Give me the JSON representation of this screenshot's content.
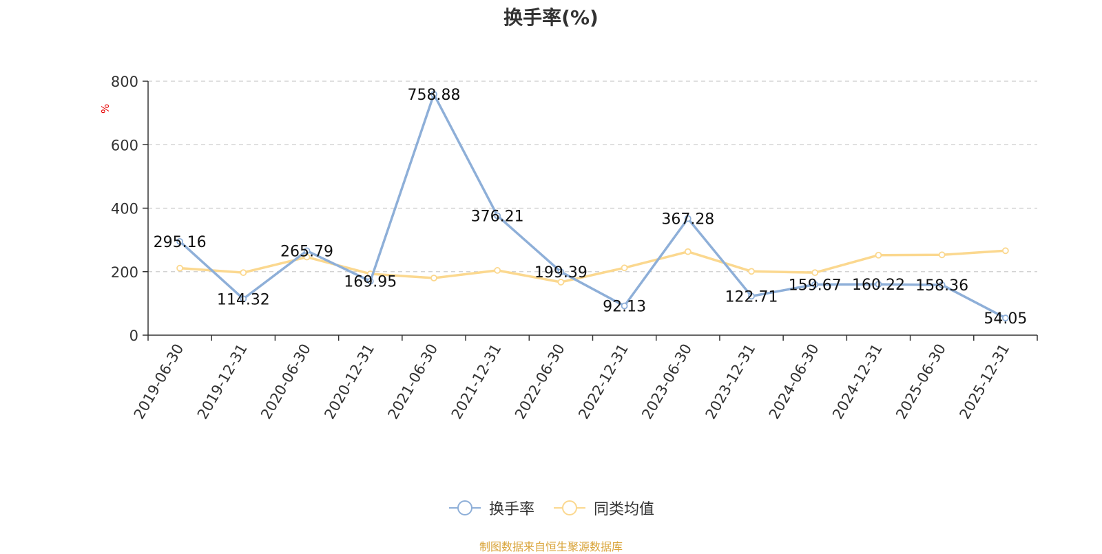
{
  "chart_data": {
    "type": "line",
    "title": "换手率(%)",
    "ylabel": "%",
    "ylim": [
      0,
      800
    ],
    "yticks": [
      0,
      200,
      400,
      600,
      800
    ],
    "grid": true,
    "legend_placement": "bottom",
    "categories": [
      "2019-06-30",
      "2019-12-31",
      "2020-06-30",
      "2020-12-31",
      "2021-06-30",
      "2021-12-31",
      "2022-06-30",
      "2022-12-31",
      "2023-06-30",
      "2023-12-31",
      "2024-06-30",
      "2024-12-31",
      "2025-06-30",
      "2025-12-31"
    ],
    "series": [
      {
        "name": "换手率",
        "color": "#8eafd8",
        "values": [
          295.16,
          114.32,
          265.79,
          169.95,
          758.88,
          376.21,
          199.39,
          92.13,
          367.28,
          122.71,
          159.67,
          160.22,
          158.36,
          54.05
        ],
        "labels": [
          "295.16",
          "114.32",
          "265.79",
          "169.95",
          "758.88",
          "376.21",
          "199.39",
          "92.13",
          "367.28",
          "122.71",
          "159.67",
          "160.22",
          "158.36",
          "54.05"
        ]
      },
      {
        "name": "同类均值",
        "color": "#fbd88f",
        "values": [
          211,
          197,
          246,
          193,
          180,
          204,
          167,
          212,
          263,
          201,
          197,
          252,
          253,
          266
        ]
      }
    ],
    "source": "制图数据来自恒生聚源数据库"
  }
}
